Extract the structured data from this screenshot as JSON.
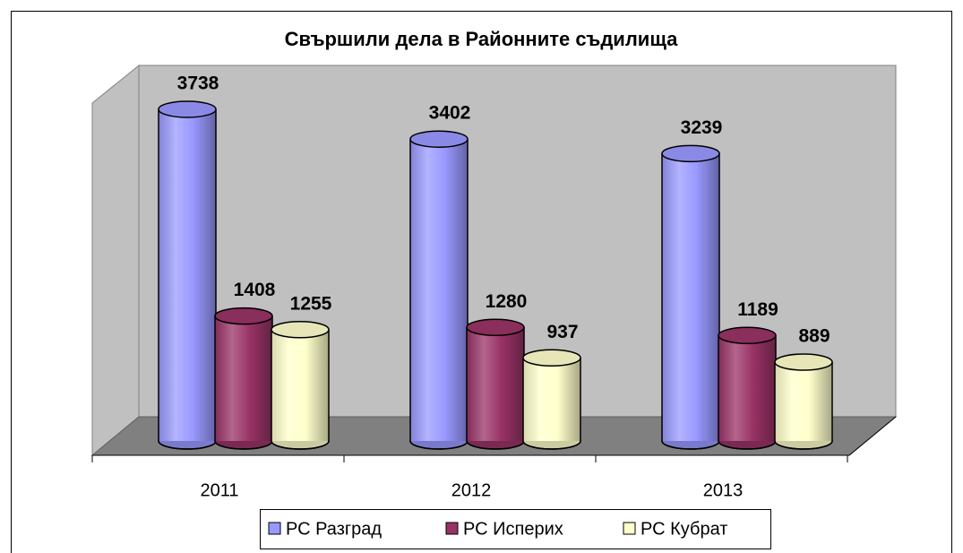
{
  "chart_data": {
    "type": "bar",
    "title": "Свършили дела в Районните съдилища",
    "categories": [
      "2011",
      "2012",
      "2013"
    ],
    "series": [
      {
        "name": "РС Разград",
        "color": "#9999ff",
        "values": [
          3738,
          3402,
          3239
        ]
      },
      {
        "name": "РС Исперих",
        "color": "#993366",
        "values": [
          1408,
          1280,
          1189
        ]
      },
      {
        "name": "РС Кубрат",
        "color": "#ffffcc",
        "values": [
          1255,
          937,
          889
        ]
      }
    ],
    "ylim": [
      0,
      4000
    ],
    "legend": "bottom"
  }
}
